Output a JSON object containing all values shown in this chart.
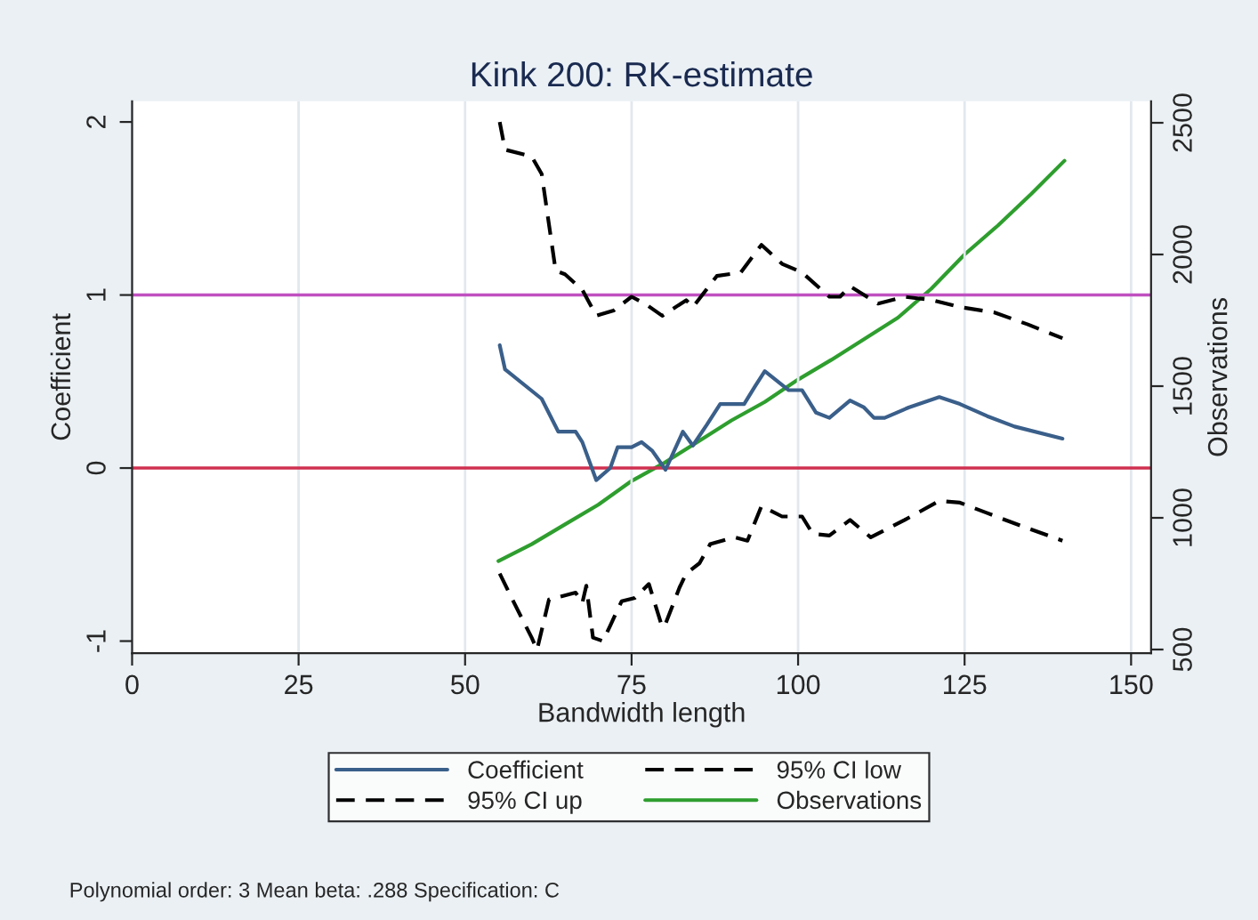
{
  "chart_data": {
    "type": "line",
    "title": "Kink 200: RK-estimate",
    "xlabel": "Bandwidth length",
    "ylabel": "Coefficient",
    "y2label": "Observations",
    "xlim": [
      0,
      153
    ],
    "xticks": [
      0,
      25,
      50,
      75,
      100,
      125,
      150
    ],
    "ylim": [
      -1.07,
      2.12
    ],
    "yticks": [
      -1,
      0,
      1,
      2
    ],
    "y2lim": [
      486,
      2582
    ],
    "y2ticks": [
      500,
      1000,
      1500,
      2000,
      2500
    ],
    "grid": "x",
    "legend": "bottom",
    "ref_lines": [
      {
        "axis": "y",
        "value": 1,
        "color": "#c050c0",
        "line_style": "solid"
      },
      {
        "axis": "y",
        "value": 0,
        "color": "#d03050",
        "line_style": "solid"
      }
    ],
    "series": [
      {
        "name": "Coefficient",
        "color": "#3a5f8a",
        "line_style": "solid",
        "x": [
          55.2,
          56,
          61.5,
          64,
          66.6,
          67.6,
          69.7,
          71.8,
          72.9,
          75,
          76.5,
          78.1,
          80.1,
          82.7,
          84.2,
          86.3,
          88.3,
          91.9,
          93.5,
          95,
          98.6,
          100.6,
          102.7,
          104.7,
          107.8,
          109.9,
          111.4,
          113,
          116.6,
          121.2,
          124.3,
          128.4,
          132.5,
          139.7
        ],
        "values": [
          0.71,
          0.57,
          0.4,
          0.21,
          0.21,
          0.15,
          -0.07,
          0.0,
          0.12,
          0.12,
          0.15,
          0.1,
          -0.01,
          0.21,
          0.13,
          0.25,
          0.37,
          0.37,
          0.47,
          0.56,
          0.45,
          0.45,
          0.32,
          0.29,
          0.39,
          0.35,
          0.29,
          0.29,
          0.35,
          0.41,
          0.37,
          0.3,
          0.24,
          0.17
        ]
      },
      {
        "name": "95% CI low",
        "color": "#000000",
        "line_style": "dashed",
        "x": [
          55.2,
          57.5,
          60,
          60.8,
          62.6,
          64.6,
          66.6,
          67.6,
          68.2,
          69.2,
          70.7,
          71.8,
          73.5,
          75.5,
          77.6,
          79.6,
          80.1,
          82.2,
          83.2,
          85.2,
          86.8,
          90.4,
          92.4,
          94.5,
          97.6,
          100.6,
          102.2,
          104.7,
          107.8,
          110.9,
          116,
          121.2,
          124.3,
          128.4,
          132.5,
          139.7
        ],
        "values": [
          -0.61,
          -0.79,
          -0.98,
          -1.05,
          -0.76,
          -0.74,
          -0.72,
          -0.78,
          -0.68,
          -0.98,
          -1.0,
          -0.91,
          -0.77,
          -0.75,
          -0.67,
          -0.92,
          -0.9,
          -0.69,
          -0.61,
          -0.55,
          -0.44,
          -0.4,
          -0.42,
          -0.22,
          -0.28,
          -0.28,
          -0.38,
          -0.39,
          -0.3,
          -0.4,
          -0.3,
          -0.19,
          -0.2,
          -0.26,
          -0.32,
          -0.42
        ]
      },
      {
        "name": "95% CI up",
        "color": "#000000",
        "line_style": "dashed",
        "x": [
          55.2,
          56,
          60,
          61.5,
          63.6,
          65,
          67.6,
          69.7,
          72.3,
          75,
          77,
          79.6,
          83.2,
          84.2,
          87.8,
          91.4,
          94.5,
          97.6,
          100.6,
          104.7,
          106.3,
          107.8,
          112,
          116,
          120.2,
          124.3,
          129.4,
          134.5,
          139.7
        ],
        "values": [
          2.0,
          1.84,
          1.8,
          1.7,
          1.14,
          1.12,
          1.03,
          0.88,
          0.91,
          0.99,
          0.95,
          0.88,
          0.97,
          0.93,
          1.11,
          1.13,
          1.29,
          1.18,
          1.13,
          0.99,
          0.99,
          1.05,
          0.95,
          0.99,
          0.97,
          0.93,
          0.9,
          0.83,
          0.75
        ]
      },
      {
        "name": "Observations",
        "color": "#2e9e2e",
        "line_style": "solid",
        "axis": "y2",
        "x": [
          55,
          60,
          65,
          70,
          75,
          80,
          85,
          90,
          95,
          100,
          105,
          110,
          115,
          120,
          125,
          130,
          135,
          140
        ],
        "values": [
          836,
          900,
          975,
          1050,
          1140,
          1210,
          1290,
          1370,
          1440,
          1525,
          1600,
          1680,
          1760,
          1870,
          2000,
          2110,
          2230,
          2356
        ]
      }
    ],
    "annotations": [
      "Polynomial order: 3 Mean beta: .288 Specification: C"
    ]
  }
}
